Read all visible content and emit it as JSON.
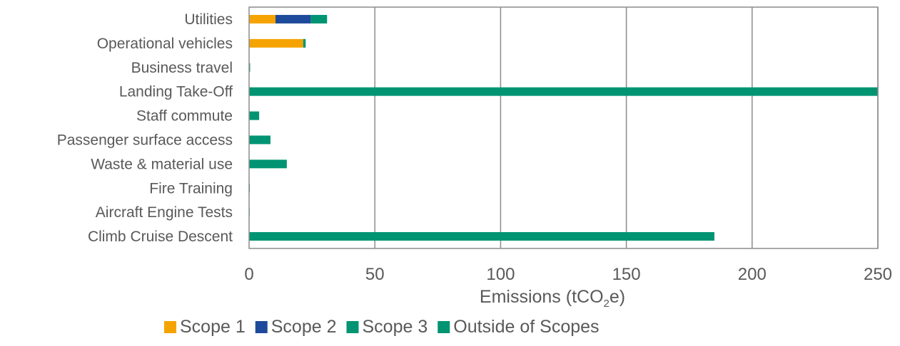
{
  "chart_data": {
    "type": "bar",
    "orientation": "horizontal",
    "stacked": true,
    "title": "",
    "xlabel": "Emissions (tCO2e)",
    "xlabel_parts": {
      "pre": "Emissions (tCO",
      "sub": "2",
      "post": "e)"
    },
    "xlim": [
      0,
      250
    ],
    "xticks": [
      0,
      50,
      100,
      150,
      200,
      250
    ],
    "grid": "vertical",
    "legend_position": "bottom",
    "categories": [
      "Utilities",
      "Operational vehicles",
      "Business travel",
      "Landing Take-Off",
      "Staff commute",
      "Passenger surface access",
      "Waste & material use",
      "Fire Training",
      "Aircraft Engine Tests",
      "Climb Cruise Descent"
    ],
    "series": [
      {
        "name": "Scope 1",
        "color": "#f5a300",
        "values": [
          10.5,
          21.5,
          0,
          0,
          0,
          0,
          0,
          0,
          0,
          0
        ]
      },
      {
        "name": "Scope 2",
        "color": "#1e4a9b",
        "values": [
          14,
          0,
          0,
          0,
          0,
          0,
          0,
          0,
          0,
          0
        ]
      },
      {
        "name": "Scope 3",
        "color": "#009473",
        "values": [
          6.5,
          1,
          0.4,
          0,
          4,
          8.5,
          15,
          0.3,
          0.1,
          0
        ]
      },
      {
        "name": "Outside of Scopes",
        "color": "#009473",
        "values": [
          0,
          0,
          0,
          250,
          0,
          0,
          0,
          0,
          0,
          185
        ]
      }
    ]
  }
}
